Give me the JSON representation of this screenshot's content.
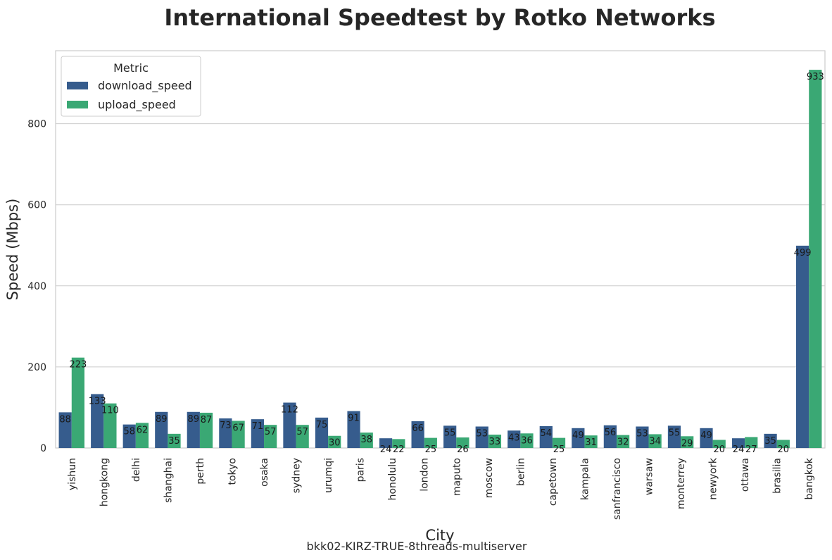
{
  "chart_data": {
    "type": "bar",
    "title": "International Speedtest by Rotko Networks",
    "xlabel": "City",
    "ylabel": "Speed (Mbps)",
    "footnote": "bkk02-KIRZ-TRUE-8threads-multiserver",
    "ylim": [
      0,
      980
    ],
    "yticks": [
      0,
      200,
      400,
      600,
      800
    ],
    "grid": true,
    "legend": {
      "title": "Metric",
      "placement": "top-left"
    },
    "categories": [
      "yishun",
      "hongkong",
      "delhi",
      "shanghai",
      "perth",
      "tokyo",
      "osaka",
      "sydney",
      "urumqi",
      "paris",
      "honolulu",
      "london",
      "maputo",
      "moscow",
      "berlin",
      "capetown",
      "kampala",
      "sanfrancisco",
      "warsaw",
      "monterrey",
      "newyork",
      "ottawa",
      "brasilia",
      "bangkok"
    ],
    "series": [
      {
        "name": "download_speed",
        "color": "#365c8d",
        "values": [
          88,
          133,
          58,
          89,
          89,
          73,
          71,
          112,
          75,
          91,
          24,
          66,
          55,
          53,
          43,
          54,
          49,
          56,
          53,
          55,
          49,
          24,
          35,
          499
        ]
      },
      {
        "name": "upload_speed",
        "color": "#3aa874",
        "values": [
          223,
          110,
          62,
          35,
          87,
          67,
          57,
          57,
          30,
          38,
          22,
          25,
          26,
          33,
          36,
          25,
          31,
          32,
          34,
          29,
          20,
          27,
          20,
          933
        ]
      }
    ]
  }
}
